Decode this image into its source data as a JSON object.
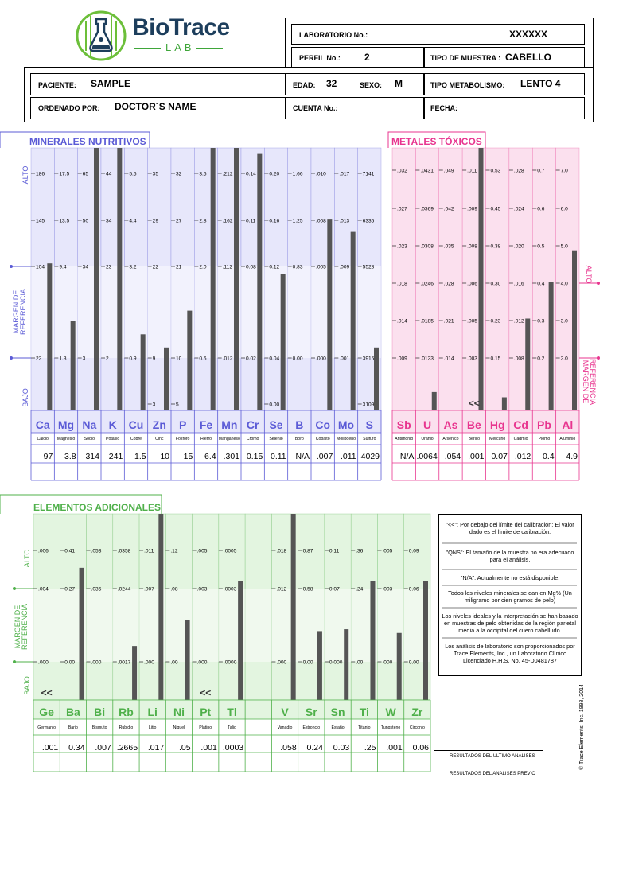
{
  "header": {
    "logo_name": "BioTrace",
    "logo_sub": "LAB",
    "lab_label": "LABORATORIO No.:",
    "lab_value": "XXXXXX",
    "profile_label": "PERFIL No.:",
    "profile_value": "2",
    "sample_type_label": "TIPO DE MUESTRA :",
    "sample_type_value": "CABELLO",
    "patient_label": "PACIENTE:",
    "patient_value": "SAMPLE",
    "age_label": "EDAD:",
    "age_value": "32",
    "sex_label": "SEXO:",
    "sex_value": "M",
    "metabolism_label": "TIPO METABOLISMO:",
    "metabolism_value": "LENTO 4",
    "ordered_label": "ORDENADO POR:",
    "ordered_value": "DOCTOR´S NAME",
    "account_label": "CUENTA No.:",
    "date_label": "FECHA:"
  },
  "side_labels": {
    "high": "ALTO",
    "ref": "MARGEN DE REFERENCIA",
    "low": "BAJO"
  },
  "notes": [
    "\"<<\": Por debajo del límite del calibración; El valor dado es el límite de calibración.",
    "\"QNS\": El tamaño de la muestra no era adecuado para el análisis.",
    "\"N/A\": Actualmente no está disponible.",
    "Todos los niveles minerales se dan en Mg% (Un miligramo por cien gramos de pelo)",
    "Los niveles ideales y la interpretación se han basado en muestras de pelo obtenidas de la región parietal media a la occipital del cuero cabelludo.",
    "Los análisis de laboratorio son proporcionados por Trace Elements, Inc., un Laboratorio Clínico Licenciado H.H.S. No. 45-D0481787"
  ],
  "footer": {
    "last_results": "RESULTADOS DEL ULTIMO ANALISES",
    "prev_results": "RESULTADOS DEL ANALISES PREVIO",
    "copyright": "© Trace Elements, Inc. 1998, 2014"
  },
  "chart_data": [
    {
      "type": "bar",
      "title": "MINERALES NUTRITIVOS",
      "color": "#5b5bd6",
      "bg": "#e7e7fb",
      "categories": [
        "Ca",
        "Mg",
        "Na",
        "K",
        "Cu",
        "Zn",
        "P",
        "Fe",
        "Mn",
        "Cr",
        "Se",
        "B",
        "Co",
        "Mo",
        "S"
      ],
      "names": [
        "Calcio",
        "Magnesio",
        "Sodio",
        "Potasio",
        "Cobre",
        "Cinc",
        "Fosforo",
        "Hierro",
        "Manganeso",
        "Cromo",
        "Selenio",
        "Boro",
        "Cobalto",
        "Molibdeno",
        "Sulfuro"
      ],
      "results": [
        "97",
        "3.8",
        "314",
        "241",
        "1.5",
        "10",
        "15",
        "6.4",
        ".301",
        "0.15",
        "0.11",
        "N/A",
        ".007",
        ".011",
        "4029"
      ],
      "ticks": [
        [
          "186",
          "145",
          "104",
          "",
          "22",
          ""
        ],
        [
          "17.5",
          "13.5",
          "9.4",
          "",
          "1.3",
          ""
        ],
        [
          "65",
          "50",
          "34",
          "",
          "3",
          ""
        ],
        [
          "44",
          "34",
          "23",
          "",
          "2",
          ""
        ],
        [
          "5.5",
          "4.4",
          "3.2",
          "",
          "0.9",
          ""
        ],
        [
          "35",
          "29",
          "22",
          "",
          "9",
          "3"
        ],
        [
          "32",
          "27",
          "21",
          "",
          "10",
          "5"
        ],
        [
          "3.5",
          "2.8",
          "2.0",
          "",
          "0.5",
          ""
        ],
        [
          ".212",
          ".162",
          ".112",
          "",
          ".012",
          ""
        ],
        [
          "0.14",
          "0.11",
          "0.08",
          "",
          "0.02",
          ""
        ],
        [
          "0.20",
          "0.16",
          "0.12",
          "",
          "0.04",
          "0.00"
        ],
        [
          "1.66",
          "1.25",
          "0.83",
          "",
          "0.00",
          ""
        ],
        [
          ".010",
          ".008",
          ".005",
          "",
          ".000",
          ""
        ],
        [
          ".017",
          ".013",
          ".009",
          "",
          ".001",
          ""
        ],
        [
          "7141",
          "6335",
          "5528",
          "",
          "3915",
          "3109"
        ]
      ],
      "level": [
        0.56,
        0.34,
        1.0,
        1.0,
        0.29,
        0.24,
        0.38,
        1.0,
        1.0,
        0.98,
        0.52,
        0,
        0.73,
        0.68,
        0.24
      ]
    },
    {
      "type": "bar",
      "title": "METALES TÓXICOS",
      "color": "#e8358f",
      "bg": "#fbe0ee",
      "categories": [
        "Sb",
        "U",
        "As",
        "Be",
        "Hg",
        "Cd",
        "Pb",
        "Al"
      ],
      "names": [
        "Antimonio",
        "Uranio",
        "Arsénico",
        "Berilio",
        "Mercurio",
        "Cadmio",
        "Plomo",
        "Aluminio"
      ],
      "results": [
        "N/A",
        ".0064",
        ".054",
        ".001",
        "0.07",
        ".012",
        "0.4",
        "4.9"
      ],
      "ticks": [
        [
          ".032",
          ".027",
          ".023",
          ".018",
          ".014",
          ".009"
        ],
        [
          ".0431",
          ".0369",
          ".0308",
          ".0246",
          ".0185",
          ".0123"
        ],
        [
          ".049",
          ".042",
          ".035",
          ".028",
          ".021",
          ".014"
        ],
        [
          ".011",
          ".009",
          ".008",
          ".006",
          ".005",
          ".003"
        ],
        [
          "0.53",
          "0.45",
          "0.38",
          "0.30",
          "0.23",
          "0.15"
        ],
        [
          ".028",
          ".024",
          ".020",
          ".016",
          ".012",
          ".008"
        ],
        [
          "0.7",
          "0.6",
          "0.5",
          "0.4",
          "0.3",
          "0.2"
        ],
        [
          "7.0",
          "6.0",
          "5.0",
          "4.0",
          "3.0",
          "2.0"
        ]
      ],
      "level": [
        0,
        0.07,
        0,
        1.0,
        0.05,
        0.35,
        0.49,
        0.61
      ],
      "below_limit": [
        "",
        "",
        "",
        "<<",
        "",
        "",
        "",
        ""
      ],
      "side_high": "ALTO",
      "side_ref": "MARGEN DE REFERENCIA"
    },
    {
      "type": "bar",
      "title": "ELEMENTOS ADICIONALES",
      "color": "#4fb04a",
      "bg": "#e3f5e0",
      "categories": [
        "Ge",
        "Ba",
        "Bi",
        "Rb",
        "Li",
        "Ni",
        "Pt",
        "Tl",
        "",
        "V",
        "Sr",
        "Sn",
        "Ti",
        "W",
        "Zr"
      ],
      "names": [
        "Germanio",
        "Bario",
        "Bismuto",
        "Rubidio",
        "Litio",
        "Niquel",
        "Platino",
        "Talio",
        "",
        "Vanadio",
        "Estroncio",
        "Estaño",
        "Titanio",
        "Tungsteno",
        "Circonio"
      ],
      "results": [
        ".001",
        "0.34",
        ".007",
        ".2665",
        ".017",
        ".05",
        ".001",
        ".0003",
        "",
        ".058",
        "0.24",
        "0.03",
        ".25",
        ".001",
        "0.06"
      ],
      "ticks": [
        [
          ".006",
          ".004",
          ".000"
        ],
        [
          "0.41",
          "0.27",
          "0.00"
        ],
        [
          ".053",
          ".035",
          ".000"
        ],
        [
          ".0358",
          ".0244",
          ".0017"
        ],
        [
          ".011",
          ".007",
          ".000"
        ],
        [
          ".12",
          ".08",
          ".00"
        ],
        [
          ".005",
          ".003",
          ".000"
        ],
        [
          ".0005",
          ".0003",
          ".0000"
        ],
        [
          "",
          "",
          ""
        ],
        [
          ".018",
          ".012",
          ".000"
        ],
        [
          "0.87",
          "0.58",
          "0.00"
        ],
        [
          "0.11",
          "0.07",
          "0.000"
        ],
        [
          ".36",
          ".24",
          ".00"
        ],
        [
          ".005",
          ".003",
          ".000"
        ],
        [
          "0.09",
          "0.06",
          "0.00"
        ]
      ],
      "level": [
        0,
        0.71,
        0,
        0.29,
        1.0,
        0.43,
        0,
        0.64,
        0,
        1.0,
        0.37,
        0.38,
        0.64,
        0.36,
        0.64
      ],
      "below_limit": [
        "<<",
        "",
        "",
        "",
        "",
        "",
        "<<",
        "",
        "",
        "",
        "",
        "",
        "",
        "",
        ""
      ]
    }
  ]
}
